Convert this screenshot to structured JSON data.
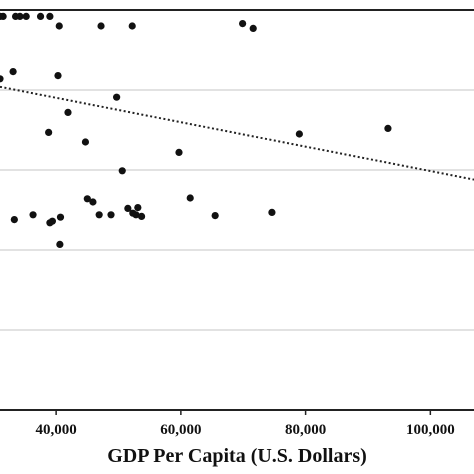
{
  "chart_data": {
    "type": "scatter",
    "xlabel": "GDP Per Capita (U.S. Dollars)",
    "ylabel": "",
    "x_ticks": [
      "40,000",
      "60,000",
      "80,000",
      "100,000"
    ],
    "x_tick_values": [
      40000,
      60000,
      80000,
      100000
    ],
    "xlim": [
      31000,
      107000
    ],
    "ylim": [
      0,
      5
    ],
    "grid": "horizontal",
    "legend": "none",
    "trendline": {
      "style": "dotted",
      "x": [
        31000,
        107000
      ],
      "y": [
        4.04,
        2.88
      ]
    },
    "points": [
      {
        "x": 31000,
        "y": 4.92
      },
      {
        "x": 31500,
        "y": 4.92
      },
      {
        "x": 33500,
        "y": 4.92
      },
      {
        "x": 34200,
        "y": 4.92
      },
      {
        "x": 35200,
        "y": 4.92
      },
      {
        "x": 37500,
        "y": 4.92
      },
      {
        "x": 39000,
        "y": 4.92
      },
      {
        "x": 40500,
        "y": 4.8
      },
      {
        "x": 47200,
        "y": 4.8
      },
      {
        "x": 52200,
        "y": 4.8
      },
      {
        "x": 31000,
        "y": 4.14
      },
      {
        "x": 33100,
        "y": 4.23
      },
      {
        "x": 40300,
        "y": 4.18
      },
      {
        "x": 41900,
        "y": 3.72
      },
      {
        "x": 49700,
        "y": 3.91
      },
      {
        "x": 38800,
        "y": 3.47
      },
      {
        "x": 44700,
        "y": 3.35
      },
      {
        "x": 69900,
        "y": 4.83
      },
      {
        "x": 71600,
        "y": 4.77
      },
      {
        "x": 59700,
        "y": 3.22
      },
      {
        "x": 79000,
        "y": 3.45
      },
      {
        "x": 93200,
        "y": 3.52
      },
      {
        "x": 50600,
        "y": 2.99
      },
      {
        "x": 45000,
        "y": 2.64
      },
      {
        "x": 45900,
        "y": 2.6
      },
      {
        "x": 33300,
        "y": 2.38
      },
      {
        "x": 36300,
        "y": 2.44
      },
      {
        "x": 39000,
        "y": 2.34
      },
      {
        "x": 39400,
        "y": 2.36
      },
      {
        "x": 40700,
        "y": 2.41
      },
      {
        "x": 46900,
        "y": 2.44
      },
      {
        "x": 48800,
        "y": 2.44
      },
      {
        "x": 51500,
        "y": 2.52
      },
      {
        "x": 52300,
        "y": 2.46
      },
      {
        "x": 52800,
        "y": 2.44
      },
      {
        "x": 53100,
        "y": 2.53
      },
      {
        "x": 53700,
        "y": 2.42
      },
      {
        "x": 61500,
        "y": 2.65
      },
      {
        "x": 65500,
        "y": 2.43
      },
      {
        "x": 74600,
        "y": 2.47
      },
      {
        "x": 40600,
        "y": 2.07
      }
    ]
  }
}
